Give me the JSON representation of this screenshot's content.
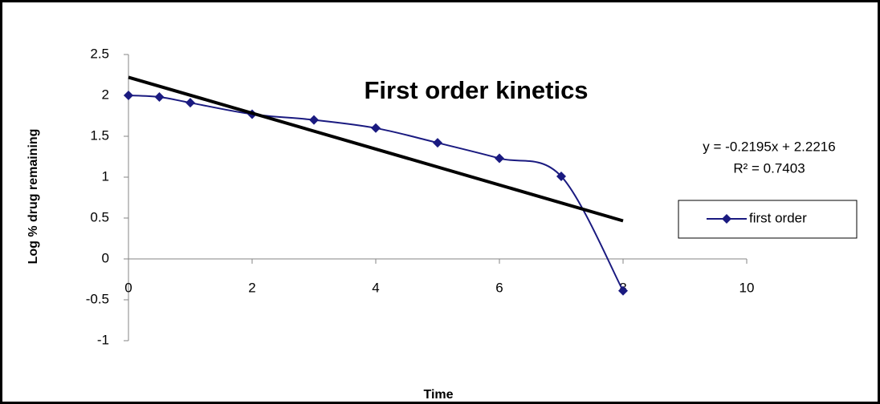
{
  "chart_data": {
    "type": "scatter",
    "title": "First order kinetics",
    "x_label": "Time",
    "y_label": "Log % drug remaining",
    "x": [
      0,
      0.5,
      1,
      2,
      3,
      4,
      5,
      6,
      7,
      8
    ],
    "series": [
      {
        "name": "first order",
        "color": "#1a1a80",
        "values": [
          2,
          1.98,
          1.91,
          1.77,
          1.7,
          1.6,
          1.42,
          1.23,
          1.01,
          -0.39
        ]
      }
    ],
    "trendline": {
      "equation": "y = -0.2195x + 2.2216",
      "r2": "R² = 0.7403",
      "slope": -0.2195,
      "intercept": 2.2216,
      "x": [
        0,
        8
      ],
      "color": "#000000"
    },
    "xlim": [
      0,
      10
    ],
    "xticks": [
      0,
      2,
      4,
      6,
      8,
      10
    ],
    "ylim": [
      -1,
      2.5
    ],
    "yticks": [
      -1,
      -0.5,
      0,
      0.5,
      1,
      1.5,
      2,
      2.5
    ],
    "legend": "right",
    "smooth": true
  }
}
